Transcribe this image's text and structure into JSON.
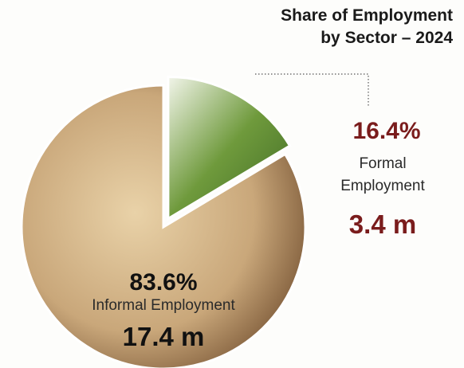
{
  "chart_data": {
    "type": "pie",
    "title": [
      "Share of Employment",
      "by Sector – 2024"
    ],
    "categories": [
      "Informal Employment",
      "Formal Employment"
    ],
    "values": [
      83.6,
      16.4
    ],
    "value_labels": [
      "83.6%",
      "16.4%"
    ],
    "colors": [
      "#c9a77a",
      "#6f9a3c"
    ],
    "employment": [
      17.4,
      3.4
    ],
    "employment_labels": [
      "17.4 m",
      "3.4 m"
    ]
  }
}
